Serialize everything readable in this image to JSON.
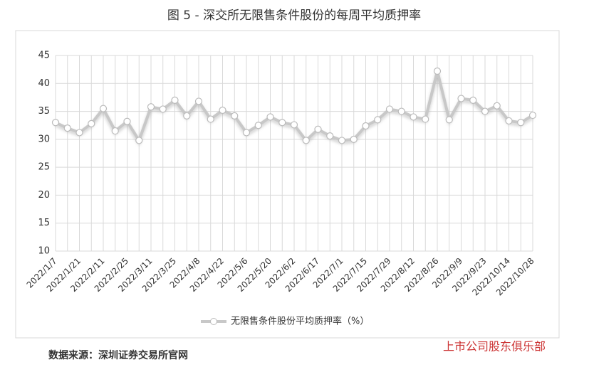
{
  "chart_data": {
    "type": "line",
    "title": "图 5 - 深交所无限售条件股份的每周平均质押率",
    "categories": [
      "2022/1/7",
      null,
      "2022/1/21",
      null,
      "2022/2/11",
      null,
      "2022/2/25",
      null,
      "2022/3/11",
      null,
      "2022/3/25",
      null,
      "2022/4/8",
      null,
      "2022/4/22",
      null,
      "2022/5/6",
      null,
      "2022/5/20",
      null,
      "2022/6/2",
      null,
      "2022/6/17",
      null,
      "2022/7/1",
      null,
      "2022/7/15",
      null,
      "2022/7/29",
      null,
      "2022/8/12",
      null,
      "2022/8/26",
      null,
      "2022/9/9",
      null,
      "2022/9/23",
      null,
      "2022/10/14",
      null,
      "2022/10/28"
    ],
    "series": [
      {
        "name": "无限售条件股份平均质押率（%）",
        "color": "#c8c8c8",
        "values": [
          33.0,
          32.0,
          31.2,
          32.8,
          35.5,
          31.5,
          33.2,
          29.8,
          35.8,
          35.4,
          37.0,
          34.2,
          36.8,
          33.6,
          35.2,
          34.2,
          31.2,
          32.5,
          34.0,
          33.0,
          32.6,
          29.8,
          31.8,
          30.6,
          29.8,
          30.0,
          32.4,
          33.5,
          35.4,
          35.0,
          34.0,
          33.6,
          42.2,
          33.5,
          37.3,
          37.0,
          35.0,
          36.0,
          33.3,
          33.0,
          34.3
        ]
      }
    ],
    "ylim": [
      10,
      45
    ],
    "yticks": [
      10,
      15,
      20,
      25,
      30,
      35,
      40,
      45
    ],
    "grid": true,
    "legend": "bottom",
    "source": "数据来源：深圳证券交易所官网",
    "watermark": "上市公司股东俱乐部"
  }
}
